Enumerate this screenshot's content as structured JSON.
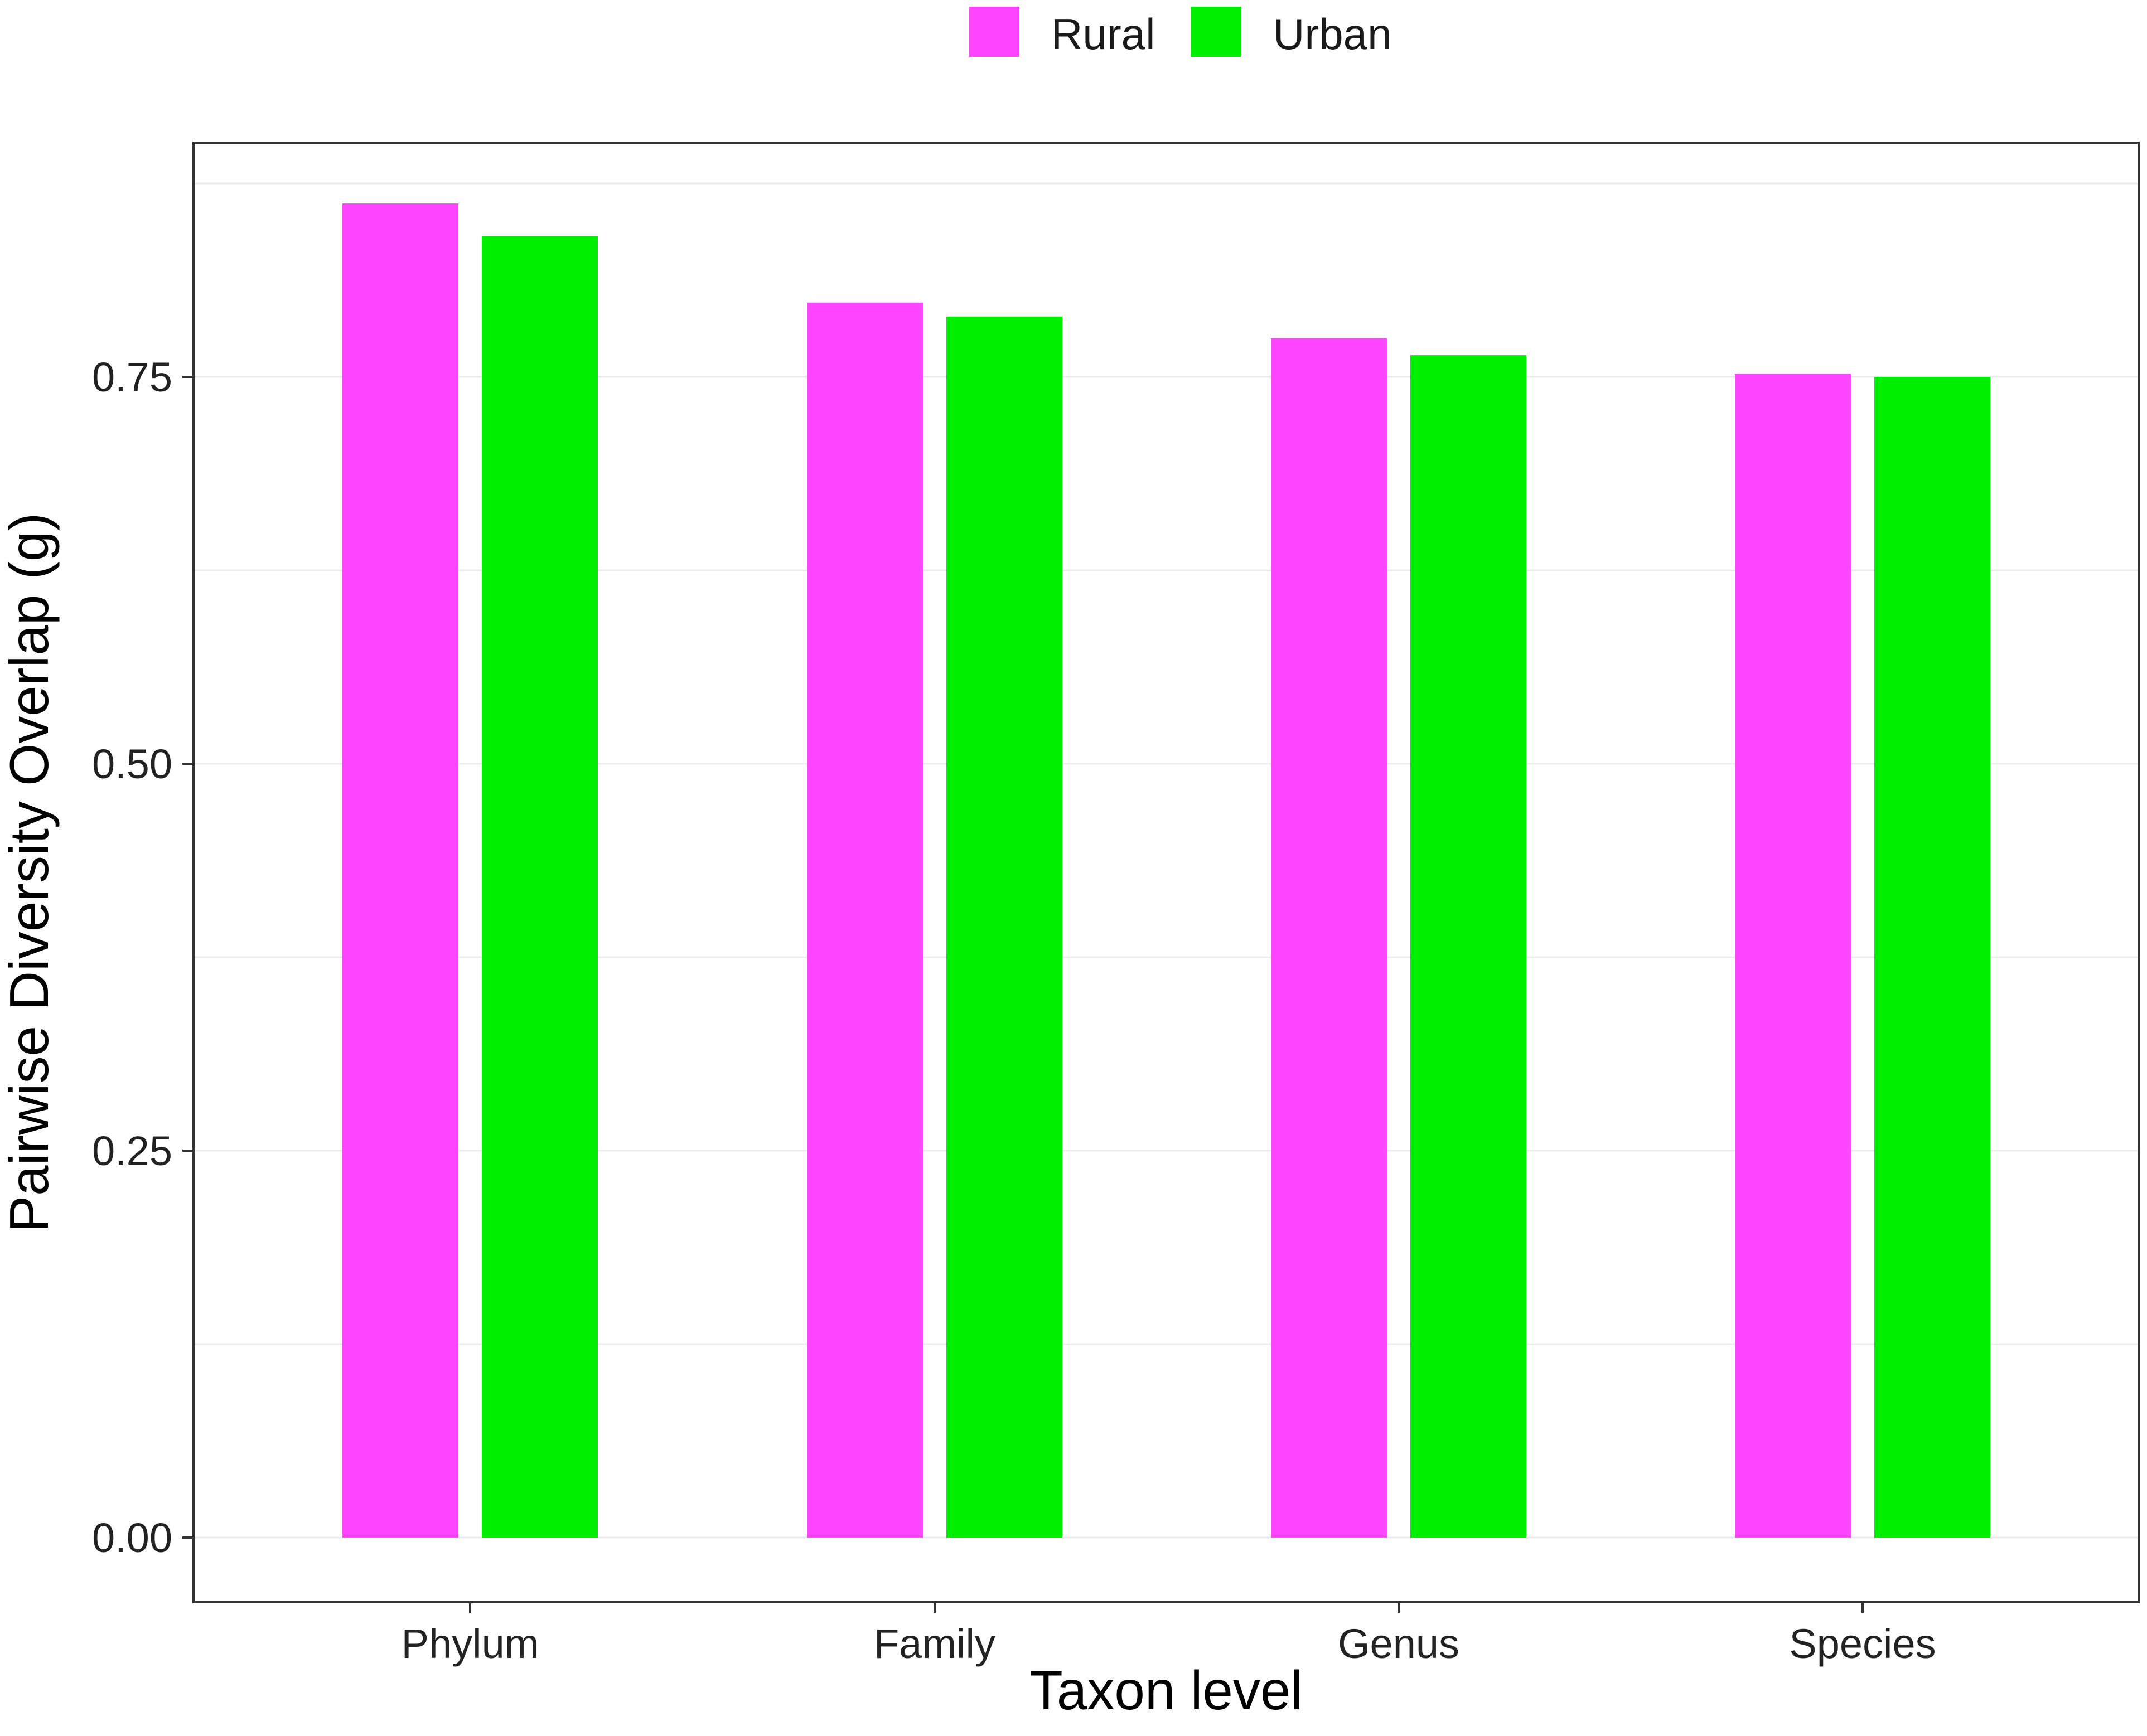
{
  "chart_data": {
    "type": "bar",
    "categories": [
      "Phylum",
      "Family",
      "Genus",
      "Species"
    ],
    "series": [
      {
        "name": "Rural",
        "color": "#ff44ff",
        "values": [
          0.862,
          0.798,
          0.775,
          0.752
        ]
      },
      {
        "name": "Urban",
        "color": "#00ee00",
        "values": [
          0.841,
          0.789,
          0.764,
          0.75
        ]
      }
    ],
    "xlabel": "Taxon level",
    "ylabel": "Pairwise Diversity Overlap (g)",
    "ylim": [
      0,
      0.9
    ],
    "yticks": [
      {
        "value": 0.0,
        "label": "0.00"
      },
      {
        "value": 0.25,
        "label": "0.25"
      },
      {
        "value": 0.5,
        "label": "0.50"
      },
      {
        "value": 0.75,
        "label": "0.75"
      }
    ],
    "minor_gridlines": [
      0.125,
      0.375,
      0.625,
      0.875
    ],
    "grid": true,
    "legend_position": "top"
  }
}
